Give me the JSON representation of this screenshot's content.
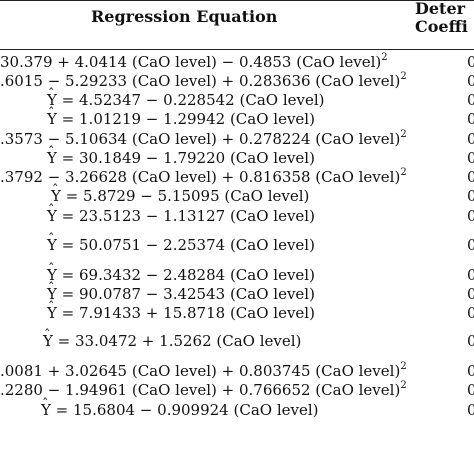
{
  "header": {
    "equation": "Regression Equation",
    "coeff_line1": "Deter",
    "coeff_line2": "Coeffi"
  },
  "rows": [
    {
      "pre": "30.379 + 4.0414 (CaO level) − 0.4853 (CaO level)",
      "sup": "2",
      "right": "0"
    },
    {
      "pre": ".6015 − 5.29233 (CaO level) + 0.283636 (CaO level)",
      "sup": "2",
      "right": "0"
    },
    {
      "yhat": "Y",
      "pre": " = 4.52347 − 0.228542 (CaO level)",
      "right": "0"
    },
    {
      "yhat": "Y",
      "pre": " = 1.01219 − 1.29942 (CaO level)",
      "right": "0"
    },
    {
      "pre": ".3573 − 5.10634 (CaO level) + 0.278224 (CaO level)",
      "sup": "2",
      "right": "0"
    },
    {
      "yhat": "Y",
      "pre": " = 30.1849 − 1.79220 (CaO level)",
      "right": "0"
    },
    {
      "pre": ".3792 − 3.26628 (CaO level) + 0.816358 (CaO level)",
      "sup": "2",
      "right": "0"
    },
    {
      "yhat": "Y",
      "pre": " = 5.8729 − 5.15095 (CaO level)",
      "right": "0"
    },
    {
      "yhat": "Y",
      "pre": " = 23.5123 − 1.13127 (CaO level)",
      "right": "0"
    },
    {
      "yhat": "Y",
      "pre": " = 50.0751 − 2.25374 (CaO level)",
      "right": "0"
    },
    {
      "yhat": "Y",
      "pre": " = 69.3432 − 2.48284 (CaO level)",
      "right": "0"
    },
    {
      "yhat": "Y",
      "pre": " = 90.0787 − 3.42543 (CaO level)",
      "right": "0"
    },
    {
      "yhat": "Y",
      "pre": " = 7.91433 + 15.8718 (CaO level)",
      "right": "0"
    },
    {
      "yhat": "Y",
      "pre": " = 33.0472 + 1.5262 (CaO level)",
      "right": "0"
    },
    {
      "pre": ".0081 + 3.02645 (CaO level) + 0.803745 (CaO level)",
      "sup": "2",
      "right": "0"
    },
    {
      "pre": ".2280 − 1.94961 (CaO level) + 0.766652 (CaO level)",
      "sup": "2",
      "right": "0"
    },
    {
      "yhat": "Y",
      "pre": " = 15.6804 − 0.909924 (CaO level)",
      "right": "0"
    }
  ]
}
